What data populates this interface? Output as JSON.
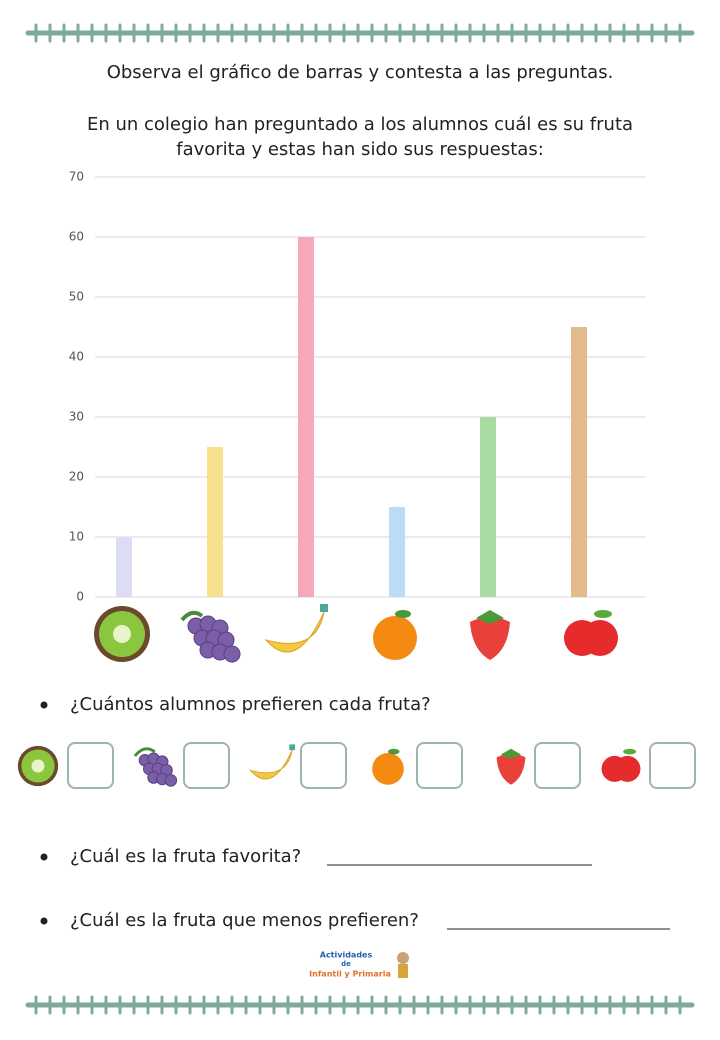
{
  "instruction": "Observa el gráfico de barras y contesta a las preguntas.",
  "intro": [
    "En un colegio han preguntado a los alumnos cuál es su fruta",
    "favorita y estas han sido sus respuestas:"
  ],
  "chart_data": {
    "type": "bar",
    "categories": [
      null,
      null,
      null,
      null,
      null,
      null
    ],
    "values": [
      10,
      25,
      60,
      15,
      30,
      45
    ],
    "colors": [
      "#dcdcf2",
      "#f7e08e",
      "#f5a9b8",
      "#bcdcf5",
      "#a8dca2",
      "#e3ba8b"
    ],
    "ylim": [
      0,
      70
    ],
    "yticks": [
      0,
      10,
      20,
      30,
      40,
      50,
      60,
      70
    ],
    "grid": true
  },
  "questions": [
    "¿Cuántos alumnos prefieren cada fruta?",
    "¿Cuál es la fruta favorita?",
    "¿Cuál es la fruta que menos prefieren?"
  ],
  "logo": [
    "Actividades",
    "de",
    "Infantil y Primaria"
  ]
}
